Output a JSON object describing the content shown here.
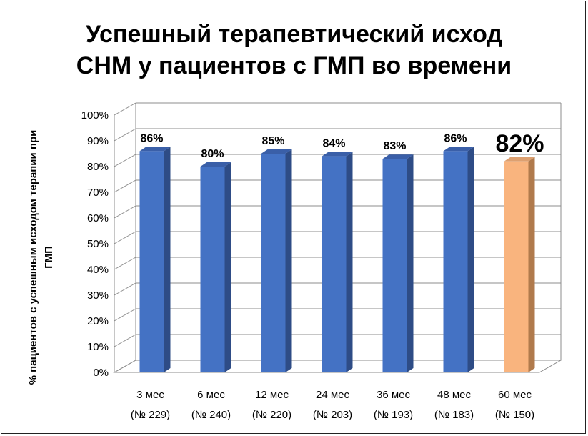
{
  "chart_data": {
    "type": "bar",
    "title_lines": [
      "Успешный терапевтический исход",
      "СНМ у пациентов с ГМП во времени"
    ],
    "ylabel_lines": [
      "% пациентов с успешным исходом терапии при",
      "ГМП"
    ],
    "categories": [
      [
        "3 мес",
        "(№ 229)"
      ],
      [
        "6 мес",
        "(№ 240)"
      ],
      [
        "12 мес",
        "(№ 220)"
      ],
      [
        "24 мес",
        "(№ 203)"
      ],
      [
        "36 мес",
        "(№ 193)"
      ],
      [
        "48 мес",
        "(№ 183)"
      ],
      [
        "60 мес",
        "(№ 150)"
      ]
    ],
    "values": [
      86,
      80,
      85,
      84,
      83,
      86,
      82
    ],
    "labels": [
      "86%",
      "80%",
      "85%",
      "84%",
      "83%",
      "86%",
      "82%"
    ],
    "highlight_index": 6,
    "yticks": [
      "0%",
      "10%",
      "20%",
      "30%",
      "40%",
      "50%",
      "60%",
      "70%",
      "80%",
      "90%",
      "100%"
    ],
    "ylim": [
      0,
      100
    ],
    "grid": true,
    "colors": {
      "bar_front": "#4472C4",
      "bar_side": "#2E4C86",
      "bar_top": "#3A5FA8",
      "highlight_front": "#F9B47E",
      "highlight_side": "#B07A4C",
      "highlight_top": "#DDA070",
      "grid": "#8C8C8C"
    }
  }
}
